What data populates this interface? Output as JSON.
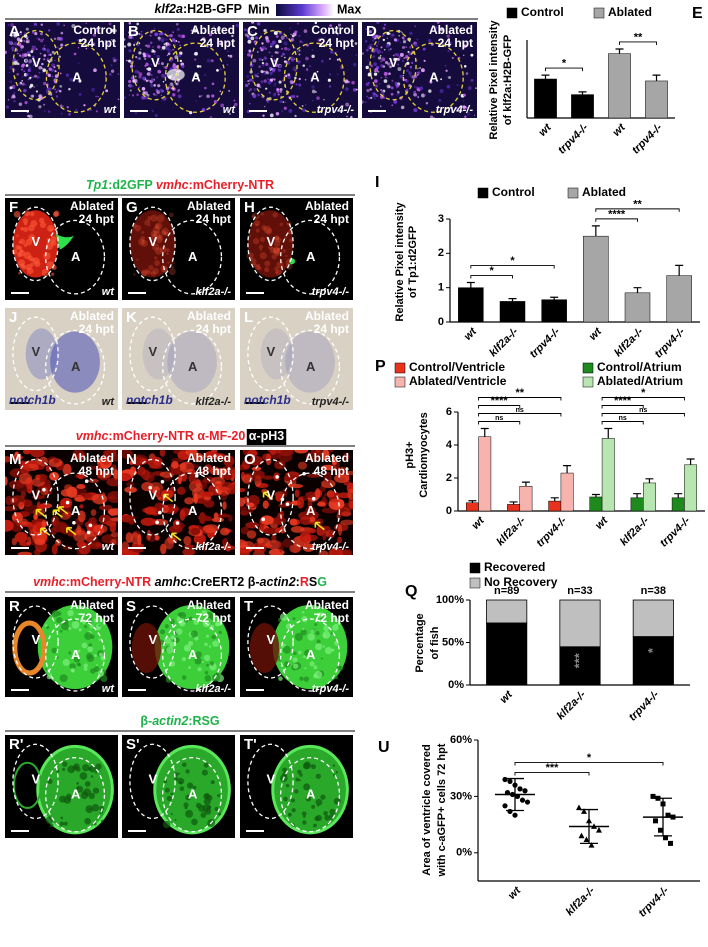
{
  "figure": {
    "image_rows": [
      {
        "header": [
          {
            "text": "klf2a",
            "italic": true,
            "color": "#000000"
          },
          {
            "text": ":H2B-GFP",
            "color": "#000000"
          }
        ],
        "scale_min": "Min",
        "scale_max": "Max",
        "panels": [
          {
            "letter": "A",
            "condition": "Control",
            "time": "24 hpt",
            "chambers": [
              "V",
              "A"
            ],
            "genotype": "wt"
          },
          {
            "letter": "B",
            "condition": "Ablated",
            "time": "24 hpt",
            "chambers": [
              "V",
              "A"
            ],
            "genotype": "wt"
          },
          {
            "letter": "C",
            "condition": "Control",
            "time": "24 hpt",
            "chambers": [
              "V",
              "A"
            ],
            "genotype": "trpv4-/-"
          },
          {
            "letter": "D",
            "condition": "Ablated",
            "time": "24 hpt",
            "chambers": [
              "V",
              "A"
            ],
            "genotype": "trpv4-/-"
          }
        ]
      },
      {
        "header": [
          {
            "text": "Tp1",
            "italic": true,
            "color": "#1db34a"
          },
          {
            "text": ":d2GFP ",
            "color": "#1db34a"
          },
          {
            "text": "vmhc",
            "italic": true,
            "color": "#e8202a"
          },
          {
            "text": ":mCherry-NTR",
            "color": "#e8202a"
          }
        ],
        "panels": [
          {
            "letter": "F",
            "condition": "Ablated",
            "time": "24 hpt",
            "chambers": [
              "V",
              "A"
            ],
            "genotype": "wt"
          },
          {
            "letter": "G",
            "condition": "Ablated",
            "time": "24 hpt",
            "chambers": [
              "V",
              "A"
            ],
            "genotype": "klf2a-/-"
          },
          {
            "letter": "H",
            "condition": "Ablated",
            "time": "24 hpt",
            "chambers": [
              "V",
              "A"
            ],
            "genotype": "trpv4-/-"
          }
        ]
      },
      {
        "panels": [
          {
            "letter": "J",
            "condition": "Ablated",
            "time": "24 hpt",
            "chambers": [
              "V",
              "A"
            ],
            "genotype": "wt",
            "probe": "notch1b"
          },
          {
            "letter": "K",
            "condition": "Ablated",
            "time": "24 hpt",
            "chambers": [
              "V",
              "A"
            ],
            "genotype": "klf2a-/-",
            "probe": "notch1b"
          },
          {
            "letter": "L",
            "condition": "Ablated",
            "time": "24 hpt",
            "chambers": [
              "V",
              "A"
            ],
            "genotype": "trpv4-/-",
            "probe": "notch1b"
          }
        ]
      },
      {
        "header": [
          {
            "text": "vmhc",
            "italic": true,
            "color": "#e8202a"
          },
          {
            "text": ":mCherry-NTR ",
            "color": "#e8202a"
          },
          {
            "text": "α-MF-20 ",
            "color": "#e8202a"
          },
          {
            "text": "α-pH3",
            "color": "#ffffff",
            "background": "#000000"
          }
        ],
        "panels": [
          {
            "letter": "M",
            "condition": "Ablated",
            "time": "48 hpt",
            "chambers": [
              "V",
              "A"
            ],
            "genotype": "wt"
          },
          {
            "letter": "N",
            "condition": "Ablated",
            "time": "48 hpt",
            "chambers": [
              "V",
              "A"
            ],
            "genotype": "klf2a-/-"
          },
          {
            "letter": "O",
            "condition": "Ablated",
            "time": "48 hpt",
            "chambers": [
              "V",
              "A"
            ],
            "genotype": "trpv4-/-"
          }
        ]
      },
      {
        "header": [
          {
            "text": "vmhc",
            "italic": true,
            "color": "#e8202a"
          },
          {
            "text": ":mCherry-NTR ",
            "color": "#e8202a"
          },
          {
            "text": "amhc",
            "italic": true,
            "color": "#000000"
          },
          {
            "text": ":CreERT2 ",
            "color": "#000000"
          },
          {
            "text": "β-",
            "color": "#000000"
          },
          {
            "text": "actin2",
            "italic": true,
            "color": "#000000"
          },
          {
            "text": ":",
            "color": "#000000"
          },
          {
            "text": "R",
            "color": "#e8202a"
          },
          {
            "text": "S",
            "color": "#000000"
          },
          {
            "text": "G",
            "color": "#1db34a"
          }
        ],
        "panels": [
          {
            "letter": "R",
            "condition": "Ablated",
            "time": "72 hpt",
            "chambers": [
              "V",
              "A"
            ],
            "genotype": "wt"
          },
          {
            "letter": "S",
            "condition": "Ablated",
            "time": "72 hpt",
            "chambers": [
              "V",
              "A"
            ],
            "genotype": "klf2a-/-"
          },
          {
            "letter": "T",
            "condition": "Ablated",
            "time": "72 hpt",
            "chambers": [
              "V",
              "A"
            ],
            "genotype": "trpv4-/-"
          }
        ]
      },
      {
        "header": [
          {
            "text": "β-",
            "color": "#1db34a"
          },
          {
            "text": "actin2",
            "italic": true,
            "color": "#1db34a"
          },
          {
            "text": ":RSG",
            "color": "#1db34a"
          }
        ],
        "panels": [
          {
            "letter": "R'",
            "chambers": [
              "V",
              "A"
            ]
          },
          {
            "letter": "S'",
            "chambers": [
              "V",
              "A"
            ]
          },
          {
            "letter": "T'",
            "chambers": [
              "V",
              "A"
            ]
          }
        ]
      }
    ]
  },
  "chart_data": [
    {
      "type": "bar",
      "panel_label": "E",
      "y_label": [
        "Relative Pixel intensity",
        "of klf2a:H2B-GFP"
      ],
      "categories": [
        "wt",
        "trpv4-/-",
        "wt",
        "trpv4-/-"
      ],
      "ylim": [
        0,
        2
      ],
      "series": [
        {
          "name": "Control",
          "color": "#000000",
          "values": [
            1.0,
            0.6,
            null,
            null
          ],
          "errors": [
            0.1,
            0.07,
            null,
            null
          ]
        },
        {
          "name": "Ablated",
          "color": "#a6a6a6",
          "values": [
            null,
            null,
            1.65,
            0.95
          ],
          "errors": [
            null,
            null,
            0.12,
            0.15
          ]
        }
      ],
      "comparisons": [
        {
          "groups": [
            0,
            1
          ],
          "label": "*"
        },
        {
          "groups": [
            2,
            3
          ],
          "label": "**"
        }
      ]
    },
    {
      "type": "bar",
      "panel_label": "I",
      "y_label": [
        "Relative Pixel intensity",
        "of Tp1:d2GFP"
      ],
      "categories": [
        "wt",
        "klf2a-/-",
        "trpv4-/-",
        "wt",
        "klf2a-/-",
        "trpv4-/-"
      ],
      "ylim": [
        0,
        3
      ],
      "yticks": [
        0,
        1,
        2,
        3
      ],
      "series": [
        {
          "name": "Control",
          "color": "#000000",
          "values": [
            1.0,
            0.6,
            0.65,
            null,
            null,
            null
          ],
          "errors": [
            0.15,
            0.08,
            0.07,
            null,
            null,
            null
          ]
        },
        {
          "name": "Ablated",
          "color": "#a6a6a6",
          "values": [
            null,
            null,
            null,
            2.5,
            0.85,
            1.35
          ],
          "errors": [
            null,
            null,
            null,
            0.3,
            0.15,
            0.3
          ]
        }
      ],
      "comparisons": [
        {
          "groups": [
            0,
            1
          ],
          "label": "*"
        },
        {
          "groups": [
            0,
            2
          ],
          "label": "*"
        },
        {
          "groups": [
            3,
            4
          ],
          "label": "****"
        },
        {
          "groups": [
            3,
            5
          ],
          "label": "**"
        }
      ]
    },
    {
      "type": "bar",
      "panel_label": "P",
      "y_label": [
        "pH3+",
        "Cardiomyocytes"
      ],
      "categories": [
        "wt",
        "klf2a-/-",
        "trpv4-/-",
        "wt",
        "klf2a-/-",
        "trpv4-/-"
      ],
      "ylim": [
        0,
        6
      ],
      "yticks": [
        0,
        2,
        4,
        6
      ],
      "series": [
        {
          "name": "Control/Ventricle",
          "color": "#e8321e",
          "values": [
            0.5,
            0.4,
            0.6,
            null,
            null,
            null
          ],
          "errors": [
            0.12,
            0.15,
            0.2,
            null,
            null,
            null
          ]
        },
        {
          "name": "Ablated/Ventricle",
          "color": "#f7b4ae",
          "values": [
            4.5,
            1.5,
            2.3,
            null,
            null,
            null
          ],
          "errors": [
            0.5,
            0.25,
            0.45,
            null,
            null,
            null
          ]
        },
        {
          "name": "Control/Atrium",
          "color": "#1e8a1e",
          "values": [
            null,
            null,
            null,
            0.85,
            0.8,
            0.8
          ],
          "errors": [
            null,
            null,
            null,
            0.15,
            0.25,
            0.25
          ]
        },
        {
          "name": "Ablated/Atrium",
          "color": "#b7e6b1",
          "values": [
            null,
            null,
            null,
            4.4,
            1.7,
            2.8
          ],
          "errors": [
            null,
            null,
            null,
            0.6,
            0.25,
            0.35
          ]
        }
      ],
      "comparisons": [
        {
          "groups": [
            0,
            1
          ],
          "label": "ns"
        },
        {
          "groups": [
            0,
            2
          ],
          "label": "ns"
        },
        {
          "groups": [
            0,
            1
          ],
          "label": "****"
        },
        {
          "groups": [
            0,
            2
          ],
          "label": "**"
        },
        {
          "groups": [
            3,
            4
          ],
          "label": "ns"
        },
        {
          "groups": [
            3,
            5
          ],
          "label": "ns"
        },
        {
          "groups": [
            3,
            4
          ],
          "label": "****"
        },
        {
          "groups": [
            3,
            5
          ],
          "label": "*"
        }
      ]
    },
    {
      "type": "stacked_bar",
      "panel_label": "Q",
      "y_label": [
        "Percentage",
        "of fish"
      ],
      "categories": [
        "wt",
        "klf2a-/-",
        "trpv4-/-"
      ],
      "ylim": [
        0,
        100
      ],
      "yticks": [
        {
          "value": 0,
          "label": "0%"
        },
        {
          "value": 50,
          "label": "50%"
        },
        {
          "value": 100,
          "label": "100%"
        }
      ],
      "series": [
        {
          "name": "Recovered",
          "color": "#000000",
          "values": [
            73,
            45,
            57
          ]
        },
        {
          "name": "No Recovery",
          "color": "#bfbfbf",
          "values": [
            27,
            55,
            43
          ]
        }
      ],
      "n_labels": [
        "n=89",
        "n=33",
        "n=38"
      ],
      "bar_annotations": [
        null,
        "***",
        "*"
      ]
    },
    {
      "type": "scatter",
      "panel_label": "U",
      "y_label": [
        "Area of ventricle covered",
        "with c-aGFP+ cells 72 hpt"
      ],
      "categories": [
        "wt",
        "klf2a-/-",
        "trpv4-/-"
      ],
      "ylim": [
        -15,
        60
      ],
      "yticks": [
        {
          "value": 0,
          "label": "0%"
        },
        {
          "value": 30,
          "label": "30%"
        },
        {
          "value": 60,
          "label": "60%"
        }
      ],
      "markers": [
        "circle",
        "triangle",
        "square"
      ],
      "color": "#000000",
      "points": [
        [
          39,
          38,
          36,
          34,
          33,
          32,
          31,
          30,
          28,
          27,
          25,
          22,
          20
        ],
        [
          24,
          22,
          17,
          14,
          12,
          9,
          7,
          4
        ],
        [
          30,
          29,
          26,
          20,
          19,
          17,
          12,
          8,
          5
        ]
      ],
      "means": [
        31,
        14,
        19
      ],
      "sd": [
        8.5,
        9,
        10
      ],
      "comparisons": [
        {
          "groups": [
            0,
            1
          ],
          "label": "***"
        },
        {
          "groups": [
            0,
            2
          ],
          "label": "*"
        }
      ]
    }
  ]
}
